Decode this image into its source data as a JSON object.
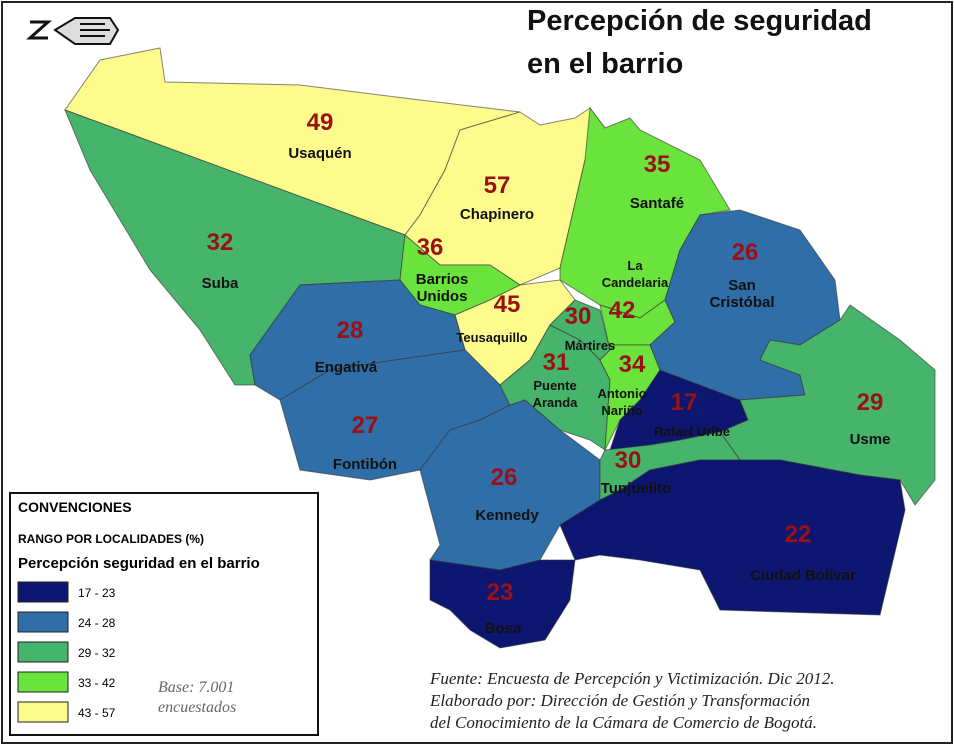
{
  "header": {
    "title": [
      "Percepción de seguridad",
      "en el barrio"
    ]
  },
  "regions": [
    {
      "name": "Usaquén",
      "value": 49,
      "color": "#fdfb8c"
    },
    {
      "name": "Chapinero",
      "value": 57,
      "color": "#fdfb8c"
    },
    {
      "name": "Suba",
      "value": 32,
      "color": "#47b46c"
    },
    {
      "name": "Santafé",
      "value": 35,
      "color": "#6ae33c"
    },
    {
      "name": [
        "Barrios",
        "Unidos"
      ],
      "value": 36,
      "color": "#6ae33c"
    },
    {
      "name": "Teusaquillo",
      "value": 45,
      "color": "#fdfb8c"
    },
    {
      "name": "Engativá",
      "value": 28,
      "color": "#2f6ea6"
    },
    {
      "name": "Fontibón",
      "value": 27,
      "color": "#2f6ea6"
    },
    {
      "name": "Kennedy",
      "value": 26,
      "color": "#2f6ea6"
    },
    {
      "name": [
        "Puente",
        "Aranda"
      ],
      "value": 31,
      "color": "#47b46c"
    },
    {
      "name": "Mártires",
      "value": 30,
      "color": "#47b46c"
    },
    {
      "name": [
        "La",
        "Candelaria"
      ],
      "value": 42,
      "color": "#6ae33c"
    },
    {
      "name": [
        "Antonio",
        "Nariño"
      ],
      "value": 34,
      "color": "#6ae33c"
    },
    {
      "name": "Rafael Uribe",
      "value": 17,
      "color": "#0d1670"
    },
    {
      "name": [
        "San",
        "Cristóbal"
      ],
      "value": 26,
      "color": "#2f6ea6"
    },
    {
      "name": "Usme",
      "value": 29,
      "color": "#47b46c"
    },
    {
      "name": "Tunjuelito",
      "value": 30,
      "color": "#47b46c"
    },
    {
      "name": "Ciudad Bolívar",
      "value": 22,
      "color": "#0d1670"
    },
    {
      "name": "Bosa",
      "value": 23,
      "color": "#0d1670"
    }
  ],
  "legend": {
    "heading": "CONVENCIONES",
    "subheading": "RANGO POR LOCALIDADES (%)",
    "title": "Percepción seguridad en el barrio",
    "items": [
      {
        "label": "17 - 23",
        "color": "#0d1670"
      },
      {
        "label": "24 - 28",
        "color": "#2f6ea6"
      },
      {
        "label": "29 - 32",
        "color": "#47b46c"
      },
      {
        "label": "33 - 42",
        "color": "#6ae33c"
      },
      {
        "label": "43 - 57",
        "color": "#fdfb8c"
      }
    ],
    "base": [
      "Base: 7.001",
      "encuestados"
    ]
  },
  "source": [
    "Fuente: Encuesta de Percepción y Victimización. Dic 2012.",
    "Elaborado por: Dirección de Gestión y Transformación",
    "del Conocimiento de la Cámara de Comercio de Bogotá."
  ]
}
